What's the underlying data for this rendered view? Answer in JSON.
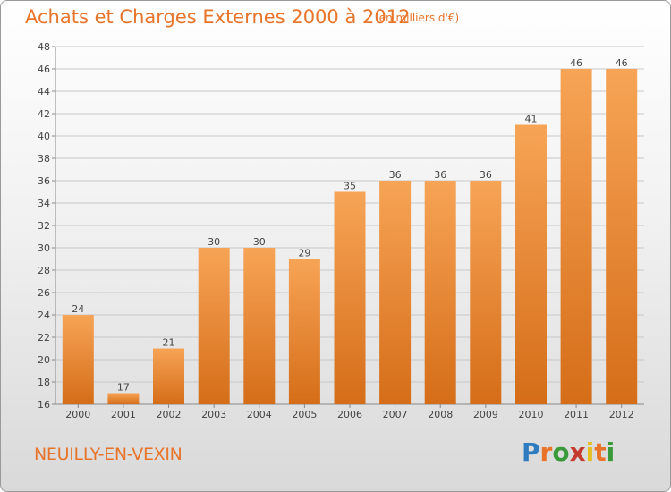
{
  "header": {
    "title": "Achats et Charges Externes 2000 à 2012",
    "unit": "(en milliers d'€)"
  },
  "footer": {
    "city": "NEUILLY-EN-VEXIN",
    "brand": "Proxiti"
  },
  "colors": {
    "accent": "#e8742a",
    "bar_light": "#f7a456",
    "bar_dark": "#d56d18",
    "grid": "#c8c8c8"
  },
  "chart_data": {
    "type": "bar",
    "title": "Achats et Charges Externes 2000 à 2012",
    "subtitle": "(en milliers d'€)",
    "xlabel": "",
    "ylabel": "",
    "categories": [
      "2000",
      "2001",
      "2002",
      "2003",
      "2004",
      "2005",
      "2006",
      "2007",
      "2008",
      "2009",
      "2010",
      "2011",
      "2012"
    ],
    "values": [
      24,
      17,
      21,
      30,
      30,
      29,
      35,
      36,
      36,
      36,
      41,
      46,
      46
    ],
    "ylim": [
      16,
      48
    ],
    "yticks": [
      16,
      18,
      20,
      22,
      24,
      26,
      28,
      30,
      32,
      34,
      36,
      38,
      40,
      42,
      44,
      46,
      48
    ],
    "grid": true,
    "legend": "none"
  }
}
